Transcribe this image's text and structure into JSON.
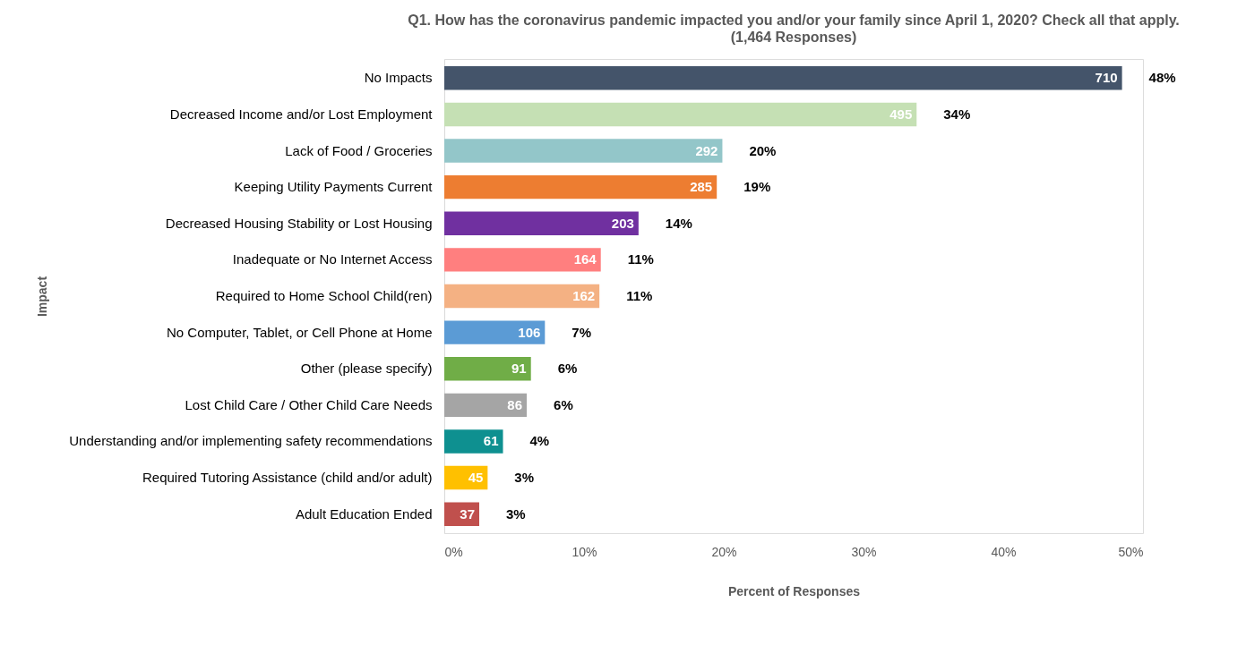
{
  "chart_data": {
    "type": "bar",
    "orientation": "horizontal",
    "title": "Q1. How has the coronavirus pandemic impacted you and/or your family since April 1, 2020? Check all that apply.",
    "subtitle": "(1,464 Responses)",
    "xlabel": "Percent of Responses",
    "ylabel": "Impact",
    "categories": [
      "No Impacts",
      "Decreased Income and/or Lost Employment",
      "Lack of Food / Groceries",
      "Keeping Utility Payments Current",
      "Decreased Housing Stability or Lost Housing",
      "Inadequate or No Internet Access",
      "Required to Home School Child(ren)",
      "No Computer, Tablet, or Cell Phone at Home",
      "Other (please specify)",
      "Lost Child Care / Other Child Care Needs",
      "Understanding and/or implementing safety recommendations",
      "Required Tutoring Assistance (child and/or adult)",
      "Adult Education Ended"
    ],
    "values": [
      48.5,
      33.8,
      19.9,
      19.5,
      13.9,
      11.2,
      11.1,
      7.2,
      6.2,
      5.9,
      4.2,
      3.1,
      2.5
    ],
    "colors": [
      "#44546a",
      "#c5e0b4",
      "#93c6c9",
      "#ed7d31",
      "#7030a0",
      "#ff7f7f",
      "#f4b183",
      "#5b9bd5",
      "#70ad47",
      "#a5a5a5",
      "#0e9090",
      "#ffc000",
      "#c0504d"
    ],
    "value_labels": [
      "48%",
      "34%",
      "20%",
      "19%",
      "14%",
      "11%",
      "11%",
      "7%",
      "6%",
      "6%",
      "4%",
      "3%",
      "3%"
    ],
    "annotations": [
      {
        "text": "710",
        "x": 48.5,
        "y": "No Impacts"
      },
      {
        "text": "495",
        "x": 33.8,
        "y": "Decreased Income and/or Lost Employment"
      },
      {
        "text": "292",
        "x": 19.9,
        "y": "Lack of Food / Groceries"
      },
      {
        "text": "285",
        "x": 19.5,
        "y": "Keeping Utility Payments Current"
      },
      {
        "text": "203",
        "x": 13.9,
        "y": "Decreased Housing Stability or Lost Housing"
      },
      {
        "text": "164",
        "x": 11.2,
        "y": "Inadequate or No Internet Access"
      },
      {
        "text": "162",
        "x": 11.1,
        "y": "Required to Home School Child(ren)"
      },
      {
        "text": "106",
        "x": 7.2,
        "y": "No Computer, Tablet, or Cell Phone at Home"
      },
      {
        "text": "91",
        "x": 6.2,
        "y": "Other (please specify)"
      },
      {
        "text": "86",
        "x": 5.9,
        "y": "Lost Child Care / Other Child Care Needs"
      },
      {
        "text": "61",
        "x": 4.2,
        "y": "Understanding and/or implementing safety recommendations"
      },
      {
        "text": "45",
        "x": 3.1,
        "y": "Required Tutoring Assistance (child and/or adult)"
      },
      {
        "text": "37",
        "x": 2.5,
        "y": "Adult Education Ended"
      }
    ],
    "xlim": [
      0,
      50
    ],
    "xticks": [
      {
        "value": 0,
        "label": "0%"
      },
      {
        "value": 10,
        "label": "10%"
      },
      {
        "value": 20,
        "label": "20%"
      },
      {
        "value": 30,
        "label": "30%"
      },
      {
        "value": 40,
        "label": "40%"
      },
      {
        "value": 50,
        "label": "50%"
      }
    ],
    "grid": false,
    "legend": false
  }
}
